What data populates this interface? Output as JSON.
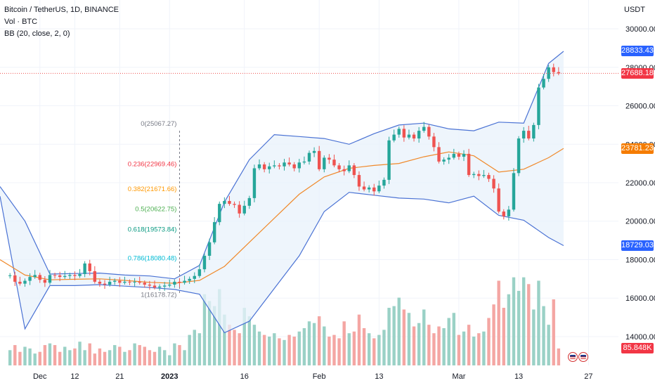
{
  "header": {
    "symbol_line": "Bitcoin / TetherUS, 1D, BINANCE",
    "vol_line": "Vol · BTC",
    "bb_line": "BB (20, close, 2, 0)"
  },
  "unit": "USDT",
  "colors": {
    "up": "#26a69a",
    "down": "#ef5350",
    "vol_up": "#9ad1c6",
    "vol_down": "#f4a6a3",
    "bb_band": "#4a72d4",
    "bb_basis": "#f0892a",
    "bb_fill": "#e8f1fb",
    "grid": "#f0f3fa",
    "axis_text": "#131722"
  },
  "chart_data": {
    "type": "candlestick",
    "title": "Bitcoin / TetherUS, 1D, BINANCE",
    "y_axis_ticks": [
      "30000.00",
      "28000.00",
      "26000.00",
      "24000.00",
      "22000.00",
      "20000.00",
      "18000.00",
      "16000.00",
      "14000.00"
    ],
    "y_ticks": [
      30000,
      28000,
      26000,
      24000,
      22000,
      20000,
      18000,
      16000,
      14000
    ],
    "ylim": [
      12500,
      31500
    ],
    "x_axis_labels": [
      {
        "label": "Dec",
        "day": 5
      },
      {
        "label": "12",
        "day": 12
      },
      {
        "label": "21",
        "day": 21
      },
      {
        "label": "2023",
        "day": 31
      },
      {
        "label": "16",
        "day": 46
      },
      {
        "label": "Feb",
        "day": 61
      },
      {
        "label": "13",
        "day": 73
      },
      {
        "label": "Mar",
        "day": 89
      },
      {
        "label": "13",
        "day": 101
      },
      {
        "label": "27",
        "day": 115
      }
    ],
    "x_range_days": [
      -3,
      121
    ],
    "volume_ylim": [
      0,
      280
    ],
    "candles": [
      {
        "day": -1,
        "close": 17180,
        "volume": 45
      },
      {
        "day": 0,
        "close": 16850,
        "volume": 60
      },
      {
        "day": 1,
        "close": 16750,
        "volume": 40
      },
      {
        "day": 2,
        "close": 16900,
        "volume": 55
      },
      {
        "day": 3,
        "close": 17100,
        "volume": 50
      },
      {
        "day": 4,
        "close": 17200,
        "volume": 35
      },
      {
        "day": 5,
        "close": 16950,
        "volume": 40
      },
      {
        "day": 6,
        "close": 16800,
        "volume": 60
      },
      {
        "day": 7,
        "close": 17200,
        "volume": 65
      },
      {
        "day": 8,
        "close": 17180,
        "volume": 60
      },
      {
        "day": 9,
        "close": 17100,
        "volume": 40
      },
      {
        "day": 10,
        "close": 17150,
        "volume": 55
      },
      {
        "day": 11,
        "close": 17200,
        "volume": 45
      },
      {
        "day": 12,
        "close": 17150,
        "volume": 50
      },
      {
        "day": 13,
        "close": 17250,
        "volume": 70
      },
      {
        "day": 14,
        "close": 17800,
        "volume": 45
      },
      {
        "day": 15,
        "close": 17400,
        "volume": 65
      },
      {
        "day": 16,
        "close": 16850,
        "volume": 35
      },
      {
        "day": 17,
        "close": 16750,
        "volume": 50
      },
      {
        "day": 18,
        "close": 16700,
        "volume": 40
      },
      {
        "day": 19,
        "close": 16850,
        "volume": 45
      },
      {
        "day": 20,
        "close": 16900,
        "volume": 60
      },
      {
        "day": 21,
        "close": 16800,
        "volume": 55
      },
      {
        "day": 22,
        "close": 16850,
        "volume": 40
      },
      {
        "day": 23,
        "close": 16830,
        "volume": 45
      },
      {
        "day": 24,
        "close": 16850,
        "volume": 65
      },
      {
        "day": 25,
        "close": 16800,
        "volume": 60
      },
      {
        "day": 26,
        "close": 16700,
        "volume": 55
      },
      {
        "day": 27,
        "close": 16650,
        "volume": 45
      },
      {
        "day": 28,
        "close": 16550,
        "volume": 40
      },
      {
        "day": 29,
        "close": 16600,
        "volume": 55
      },
      {
        "day": 30,
        "close": 16650,
        "volume": 45
      },
      {
        "day": 31,
        "close": 16700,
        "volume": 30
      },
      {
        "day": 32,
        "close": 16850,
        "volume": 65
      },
      {
        "day": 33,
        "close": 16800,
        "volume": 60
      },
      {
        "day": 34,
        "close": 16900,
        "volume": 45
      },
      {
        "day": 35,
        "close": 17000,
        "volume": 90
      },
      {
        "day": 36,
        "close": 17150,
        "volume": 105
      },
      {
        "day": 37,
        "close": 17500,
        "volume": 95
      },
      {
        "day": 38,
        "close": 18200,
        "volume": 210
      },
      {
        "day": 39,
        "close": 18900,
        "volume": 190
      },
      {
        "day": 40,
        "close": 19950,
        "volume": 175
      },
      {
        "day": 41,
        "close": 20900,
        "volume": 225
      },
      {
        "day": 42,
        "close": 21050,
        "volume": 150
      },
      {
        "day": 43,
        "close": 20900,
        "volume": 120
      },
      {
        "day": 44,
        "close": 20850,
        "volume": 105
      },
      {
        "day": 45,
        "close": 20400,
        "volume": 95
      },
      {
        "day": 46,
        "close": 20800,
        "volume": 170
      },
      {
        "day": 47,
        "close": 21200,
        "volume": 145
      },
      {
        "day": 48,
        "close": 22750,
        "volume": 120
      },
      {
        "day": 49,
        "close": 22950,
        "volume": 100
      },
      {
        "day": 50,
        "close": 22700,
        "volume": 90
      },
      {
        "day": 51,
        "close": 22850,
        "volume": 85
      },
      {
        "day": 52,
        "close": 22900,
        "volume": 95
      },
      {
        "day": 53,
        "close": 22850,
        "volume": 80
      },
      {
        "day": 54,
        "close": 23050,
        "volume": 75
      },
      {
        "day": 55,
        "close": 22950,
        "volume": 90
      },
      {
        "day": 56,
        "close": 22750,
        "volume": 85
      },
      {
        "day": 57,
        "close": 23050,
        "volume": 100
      },
      {
        "day": 58,
        "close": 23100,
        "volume": 110
      },
      {
        "day": 59,
        "close": 23550,
        "volume": 130
      },
      {
        "day": 60,
        "close": 23650,
        "volume": 125
      },
      {
        "day": 61,
        "close": 22700,
        "volume": 145
      },
      {
        "day": 62,
        "close": 23300,
        "volume": 115
      },
      {
        "day": 63,
        "close": 23200,
        "volume": 85
      },
      {
        "day": 64,
        "close": 22900,
        "volume": 90
      },
      {
        "day": 65,
        "close": 22700,
        "volume": 80
      },
      {
        "day": 66,
        "close": 22600,
        "volume": 130
      },
      {
        "day": 67,
        "close": 22900,
        "volume": 95
      },
      {
        "day": 68,
        "close": 22400,
        "volume": 100
      },
      {
        "day": 69,
        "close": 21800,
        "volume": 150
      },
      {
        "day": 70,
        "close": 21650,
        "volume": 110
      },
      {
        "day": 71,
        "close": 21750,
        "volume": 95
      },
      {
        "day": 72,
        "close": 21550,
        "volume": 80
      },
      {
        "day": 73,
        "close": 21850,
        "volume": 90
      },
      {
        "day": 74,
        "close": 22150,
        "volume": 105
      },
      {
        "day": 75,
        "close": 24200,
        "volume": 170
      },
      {
        "day": 76,
        "close": 24500,
        "volume": 175
      },
      {
        "day": 77,
        "close": 24800,
        "volume": 200
      },
      {
        "day": 78,
        "close": 24350,
        "volume": 165
      },
      {
        "day": 79,
        "close": 24500,
        "volume": 155
      },
      {
        "day": 80,
        "close": 24300,
        "volume": 115
      },
      {
        "day": 81,
        "close": 24700,
        "volume": 125
      },
      {
        "day": 82,
        "close": 24900,
        "volume": 165
      },
      {
        "day": 83,
        "close": 24400,
        "volume": 120
      },
      {
        "day": 84,
        "close": 23850,
        "volume": 95
      },
      {
        "day": 85,
        "close": 23100,
        "volume": 115
      },
      {
        "day": 86,
        "close": 23200,
        "volume": 110
      },
      {
        "day": 87,
        "close": 23300,
        "volume": 140
      },
      {
        "day": 88,
        "close": 23500,
        "volume": 155
      },
      {
        "day": 89,
        "close": 23350,
        "volume": 90
      },
      {
        "day": 90,
        "close": 23500,
        "volume": 100
      },
      {
        "day": 91,
        "close": 22400,
        "volume": 120
      },
      {
        "day": 92,
        "close": 22450,
        "volume": 85
      },
      {
        "day": 93,
        "close": 22350,
        "volume": 95
      },
      {
        "day": 94,
        "close": 22400,
        "volume": 100
      },
      {
        "day": 95,
        "close": 22200,
        "volume": 140
      },
      {
        "day": 96,
        "close": 21700,
        "volume": 180
      },
      {
        "day": 97,
        "close": 20500,
        "volume": 250
      },
      {
        "day": 98,
        "close": 20250,
        "volume": 170
      },
      {
        "day": 99,
        "close": 20600,
        "volume": 210
      },
      {
        "day": 100,
        "close": 22500,
        "volume": 260
      },
      {
        "day": 101,
        "close": 24300,
        "volume": 220
      },
      {
        "day": 102,
        "close": 24700,
        "volume": 260
      },
      {
        "day": 103,
        "close": 24300,
        "volume": 240
      },
      {
        "day": 104,
        "close": 25000,
        "volume": 165
      },
      {
        "day": 105,
        "close": 26950,
        "volume": 250
      },
      {
        "day": 106,
        "close": 27400,
        "volume": 175
      },
      {
        "day": 107,
        "close": 28000,
        "volume": 120
      },
      {
        "day": 108,
        "close": 27750,
        "volume": 195
      },
      {
        "day": 109,
        "close": 27688,
        "volume": 50
      }
    ],
    "bollinger": {
      "days": [
        -3,
        2,
        7,
        12,
        17,
        22,
        27,
        32,
        37,
        42,
        47,
        52,
        57,
        62,
        67,
        72,
        77,
        82,
        87,
        92,
        97,
        102,
        107,
        110
      ],
      "basis": [
        18000,
        17200,
        16950,
        16980,
        17000,
        16920,
        16820,
        16770,
        16920,
        17650,
        18900,
        20150,
        21400,
        22300,
        22750,
        22900,
        23000,
        23350,
        23600,
        23400,
        22550,
        22700,
        23300,
        23781
      ],
      "upper": [
        21800,
        20000,
        17250,
        17280,
        17300,
        17200,
        17150,
        17000,
        17700,
        21000,
        23200,
        24500,
        24400,
        24300,
        24000,
        24550,
        25000,
        25100,
        24800,
        24700,
        25150,
        25100,
        28200,
        28833
      ],
      "lower": [
        21300,
        14400,
        16650,
        16650,
        16700,
        16620,
        16550,
        16450,
        16200,
        14200,
        14800,
        16500,
        18200,
        20500,
        21500,
        21350,
        21200,
        21150,
        20950,
        21300,
        20300,
        20050,
        19150,
        18729
      ]
    },
    "fib_anchor_day": 33,
    "fib_levels": [
      {
        "label": "0(25067.27)",
        "value": 25067.27,
        "color": "#787b86"
      },
      {
        "label": "0.236(22969.46)",
        "value": 22969.46,
        "color": "#f23645"
      },
      {
        "label": "0.382(21671.66)",
        "value": 21671.66,
        "color": "#ff9800"
      },
      {
        "label": "0.5(20622.75)",
        "value": 20622.75,
        "color": "#4caf50"
      },
      {
        "label": "0.618(19573.84)",
        "value": 19573.84,
        "color": "#089981"
      },
      {
        "label": "0.786(18080.48)",
        "value": 18080.48,
        "color": "#00bcd4"
      },
      {
        "label": "1(16178.72)",
        "value": 16178.72,
        "color": "#787b86"
      }
    ],
    "price_badges": [
      {
        "label": "28833.43",
        "value": 28833.43,
        "color": "#2962ff"
      },
      {
        "label": "27688.18",
        "value": 27688.18,
        "color": "#f23645"
      },
      {
        "label": "23781.23",
        "value": 23781.23,
        "color": "#f57c00"
      },
      {
        "label": "18729.03",
        "value": 18729.03,
        "color": "#2962ff"
      }
    ],
    "volume_badge": {
      "label": "85.848K",
      "color": "#f23645"
    },
    "current_price": 27688.18
  }
}
